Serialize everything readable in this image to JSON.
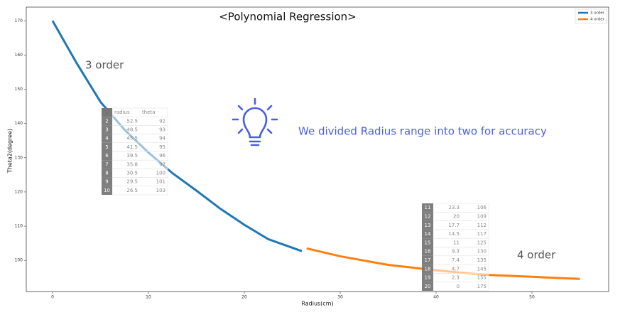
{
  "chart_data": {
    "type": "line",
    "title": "<Polynomial Regression>",
    "x_label": "Radius(cm)",
    "y_label": "Theta2(degree)",
    "xlim": [
      -2.74,
      58
    ],
    "ylim": [
      90.9,
      174
    ],
    "xticks": [
      0,
      10,
      20,
      30,
      40,
      50
    ],
    "yticks": [
      100,
      110,
      120,
      130,
      140,
      150,
      160,
      170
    ],
    "legend": "upper right",
    "series": [
      {
        "name": "3 order",
        "color": "#1f77b4",
        "x": [
          0,
          2.5,
          5,
          7.5,
          10,
          12.5,
          15,
          17.5,
          20,
          22.5,
          26
        ],
        "values": [
          170,
          157.7,
          146.3,
          138.2,
          131.5,
          125.5,
          120.4,
          115.1,
          110.4,
          106.2,
          102.7
        ]
      },
      {
        "name": "4 order",
        "color": "#ff7f0e",
        "x": [
          26.5,
          30,
          35,
          40,
          45,
          50,
          55
        ],
        "values": [
          103.5,
          101.2,
          98.7,
          97.1,
          95.8,
          95.2,
          94.6
        ]
      }
    ],
    "annotations": [
      "3 order",
      "4 order",
      "We divided Radius range into two for accuracy"
    ]
  },
  "tables": [
    {
      "header": [
        "radius",
        "theta"
      ],
      "rows": [
        [
          "2",
          "52.5",
          "92"
        ],
        [
          "3",
          "48.5",
          "93"
        ],
        [
          "4",
          "45.5",
          "94"
        ],
        [
          "5",
          "41.5",
          "95"
        ],
        [
          "6",
          "39.5",
          "96"
        ],
        [
          "7",
          "35.8",
          "97"
        ],
        [
          "8",
          "30.5",
          "100"
        ],
        [
          "9",
          "29.5",
          "101"
        ],
        [
          "10",
          "26.5",
          "103"
        ]
      ]
    },
    {
      "rows": [
        [
          "11",
          "23.3",
          "106"
        ],
        [
          "12",
          "20",
          "109"
        ],
        [
          "13",
          "17.7",
          "112"
        ],
        [
          "14",
          "14.5",
          "117"
        ],
        [
          "15",
          "11",
          "125"
        ],
        [
          "16",
          "9.3",
          "130"
        ],
        [
          "17",
          "7.4",
          "135"
        ],
        [
          "18",
          "4.7",
          "145"
        ],
        [
          "19",
          "2.3",
          "155"
        ],
        [
          "20",
          "0",
          "175"
        ]
      ]
    }
  ]
}
